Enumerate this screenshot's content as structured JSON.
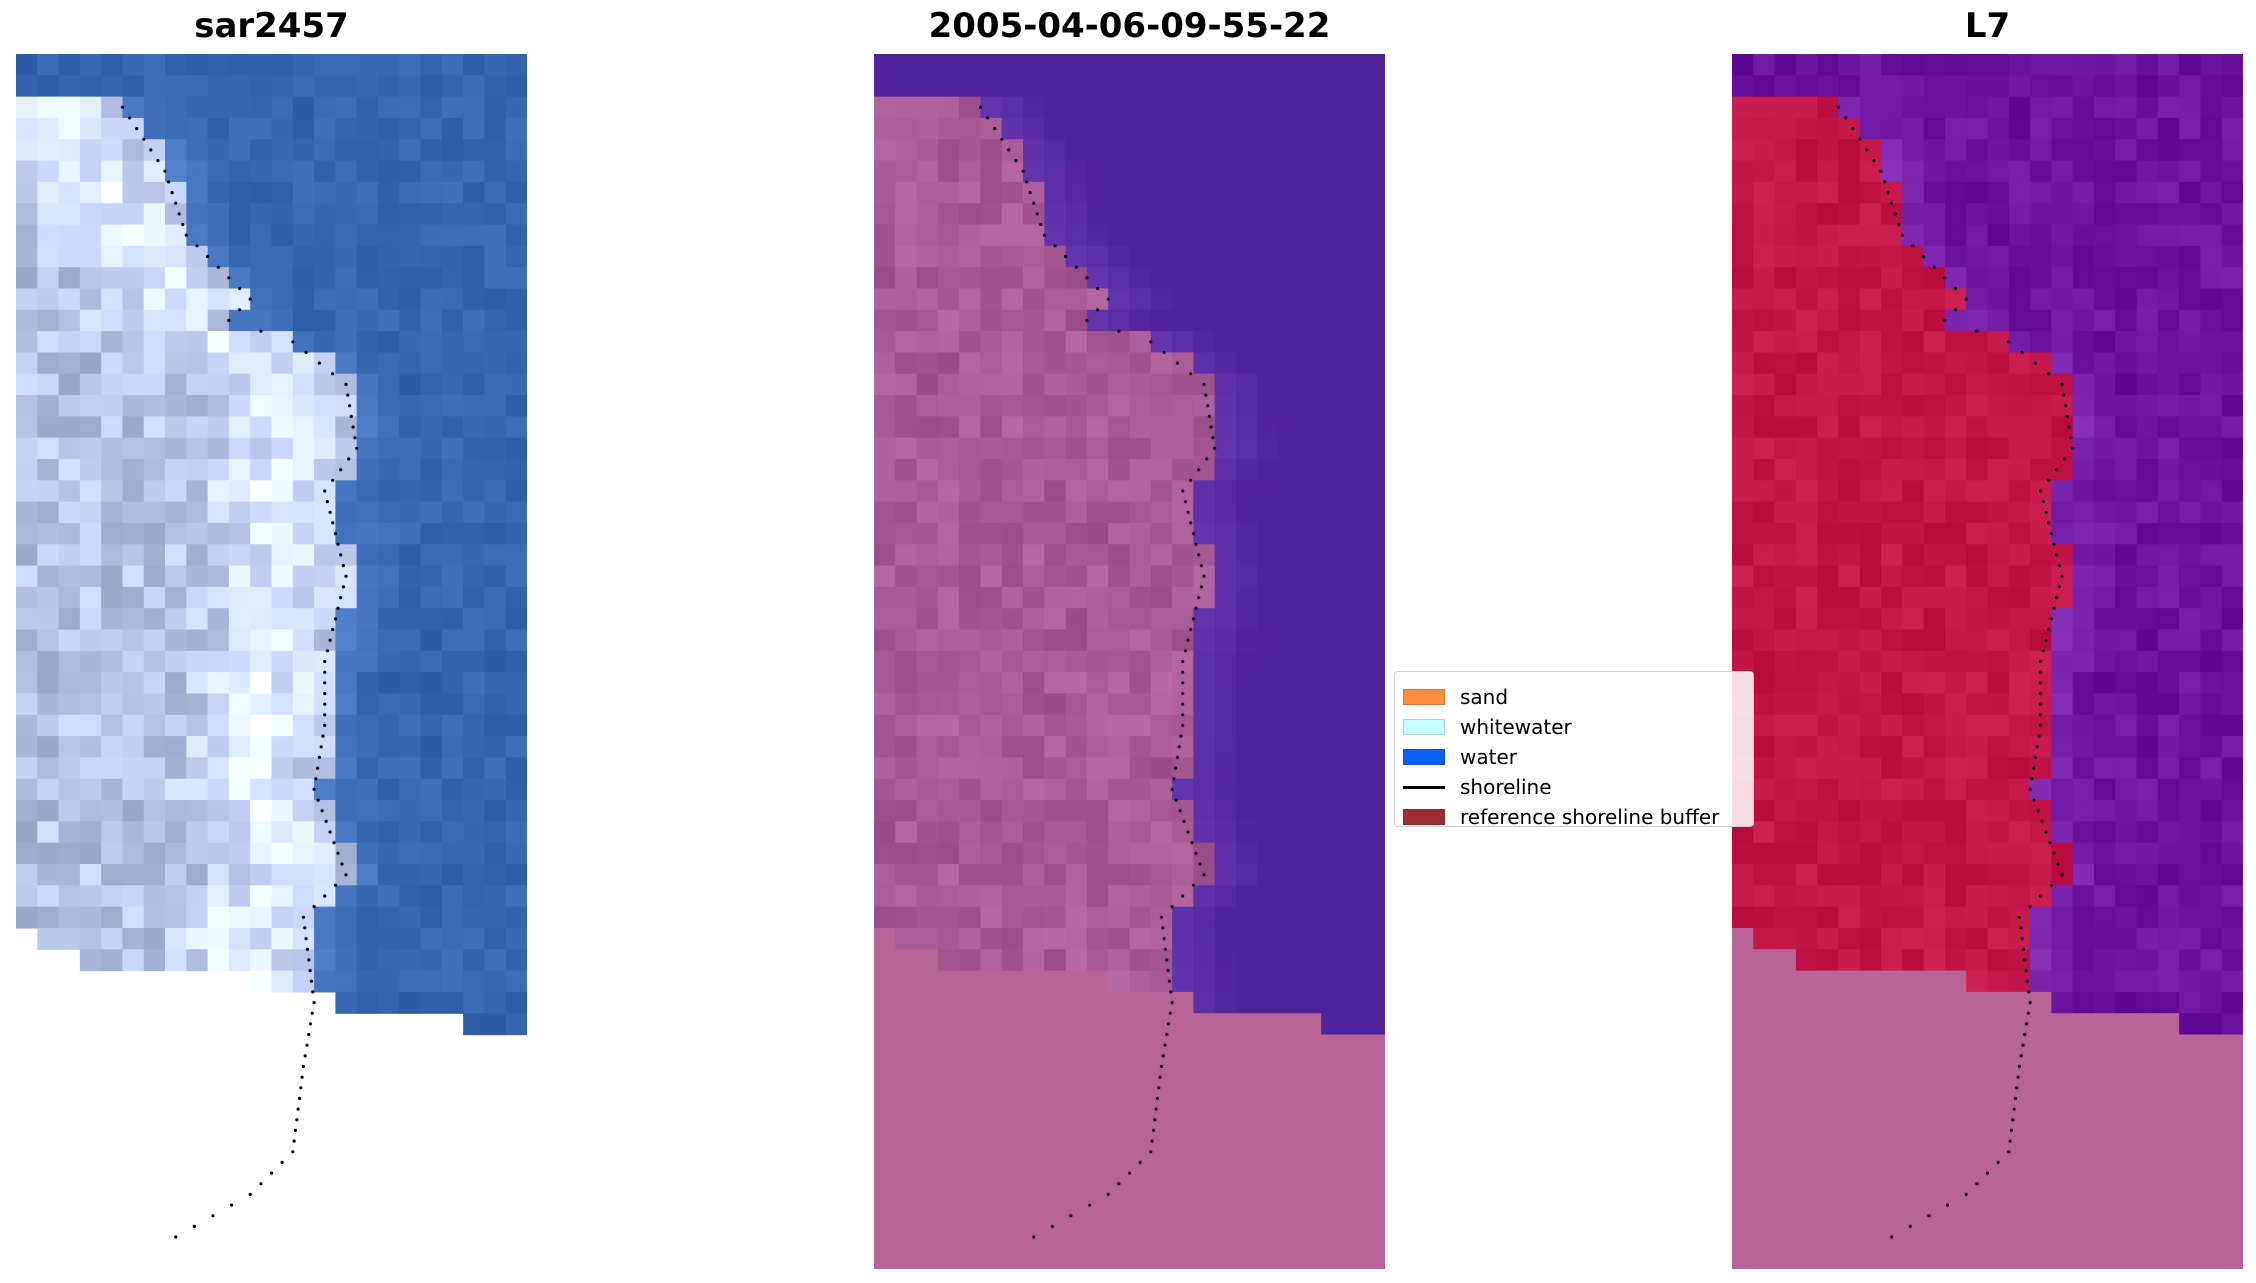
{
  "panels": [
    {
      "title": "sar2457"
    },
    {
      "title": "2005-04-06-09-55-22"
    },
    {
      "title": "L7"
    }
  ],
  "legend": {
    "items": [
      {
        "label": "sand",
        "kind": "patch",
        "color": "#ff8c3f"
      },
      {
        "label": "whitewater",
        "kind": "patch",
        "color": "#c8fcfc"
      },
      {
        "label": "water",
        "kind": "patch",
        "color": "#0a5ff5"
      },
      {
        "label": "shoreline",
        "kind": "line",
        "color": "#000000"
      },
      {
        "label": "reference shoreline buffer",
        "kind": "patch",
        "color": "#9b2f36"
      }
    ]
  },
  "colors": {
    "rgb_land": "#b6c3e6",
    "rgb_water": "#3766b0",
    "classified_land": "#a85a96",
    "classified_water": "#52229a",
    "classified_nodata": "#b96496",
    "mndwi_land": "#c2164a",
    "mndwi_water": "#6a139c",
    "mndwi_nodata": "#b96496"
  }
}
